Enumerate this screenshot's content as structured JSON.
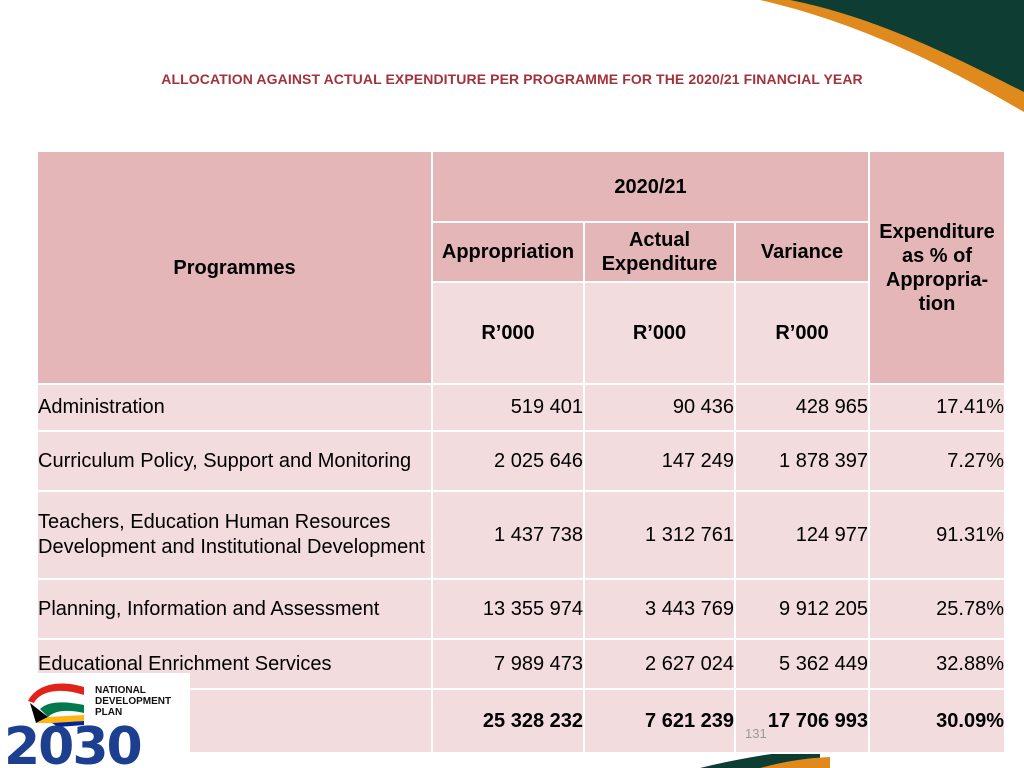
{
  "slide": {
    "title": "ALLOCATION AGAINST ACTUAL EXPENDITURE PER PROGRAMME FOR THE 2020/21 FINANCIAL YEAR",
    "page_number": "131",
    "accent_colors": {
      "title": "#a2333c",
      "header_fill": "#e4b6b8",
      "row_fill": "#f2dcdd",
      "swoosh_dark": "#0e3d34",
      "swoosh_orange": "#e08a1e"
    }
  },
  "table": {
    "header": {
      "programmes": "Programmes",
      "year": "2020/21",
      "appropriation": "Appropriation",
      "actual_expenditure": "Actual Expenditure",
      "variance": "Variance",
      "expenditure_pct": "Expenditure as % of Appropria-tion",
      "unit": "R’000"
    },
    "rows": [
      {
        "programme": "Administration",
        "appropriation": "519 401",
        "actual": "90 436",
        "variance": "428 965",
        "pct": "17.41%"
      },
      {
        "programme": "Curriculum Policy, Support and Monitoring",
        "appropriation": "2 025 646",
        "actual": "147 249",
        "variance": "1 878 397",
        "pct": "7.27%"
      },
      {
        "programme": "Teachers, Education Human Resources Development and Institutional Development",
        "appropriation": "1 437 738",
        "actual": "1 312 761",
        "variance": "124 977",
        "pct": "91.31%"
      },
      {
        "programme": "Planning, Information and Assessment",
        "appropriation": "13 355 974",
        "actual": "3 443 769",
        "variance": "9 912 205",
        "pct": "25.78%"
      },
      {
        "programme": "Educational Enrichment Services",
        "appropriation": "7 989 473",
        "actual": "2 627 024",
        "variance": "5 362 449",
        "pct": "32.88%"
      }
    ],
    "total": {
      "appropriation": "25 328 232",
      "actual": "7 621 239",
      "variance": "17 706 993",
      "pct": "30.09%"
    }
  },
  "logo": {
    "line1": "NATIONAL",
    "line2": "DEVELOPMENT",
    "line3": "PLAN",
    "year": "2030"
  }
}
